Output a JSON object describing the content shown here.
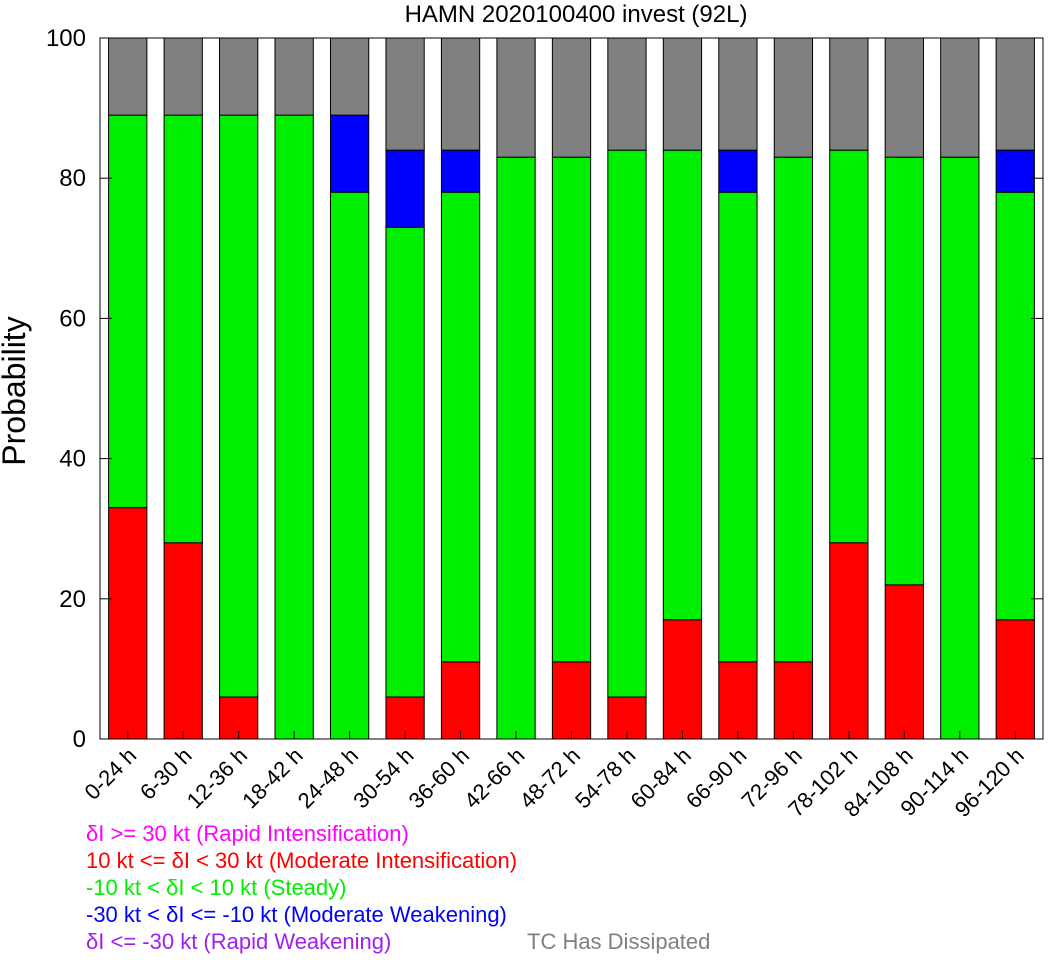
{
  "chart_data": {
    "type": "bar",
    "stacked": true,
    "title": "HAMN 2020100400 invest (92L)",
    "xlabel": "",
    "ylabel": "Probability",
    "ylim": [
      0,
      100
    ],
    "yticks": [
      0,
      20,
      40,
      60,
      80,
      100
    ],
    "grid": false,
    "categories": [
      "0-24 h",
      "6-30 h",
      "12-36 h",
      "18-42 h",
      "24-48 h",
      "30-54 h",
      "36-60 h",
      "42-66 h",
      "48-72 h",
      "54-78 h",
      "60-84 h",
      "66-90 h",
      "72-96 h",
      "78-102 h",
      "84-108 h",
      "90-114 h",
      "96-120 h"
    ],
    "series": [
      {
        "name": "δI >= 30 kt (Rapid Intensification)",
        "color": "#ff00ff",
        "values": [
          0,
          0,
          0,
          0,
          0,
          0,
          0,
          0,
          0,
          0,
          0,
          0,
          0,
          0,
          0,
          0,
          0
        ]
      },
      {
        "name": "10 kt <= δI < 30 kt (Moderate Intensification)",
        "color": "#ff0000",
        "values": [
          33,
          28,
          6,
          0,
          0,
          6,
          11,
          0,
          11,
          6,
          17,
          11,
          11,
          28,
          22,
          0,
          17
        ]
      },
      {
        "name": "-10 kt < δI < 10 kt (Steady)",
        "color": "#00ee00",
        "values": [
          56,
          61,
          83,
          89,
          78,
          67,
          67,
          83,
          72,
          78,
          67,
          67,
          72,
          56,
          61,
          83,
          61
        ]
      },
      {
        "name": "-30 kt < δI <= -10 kt (Moderate Weakening)",
        "color": "#0000ff",
        "values": [
          0,
          0,
          0,
          0,
          11,
          11,
          6,
          0,
          0,
          0,
          0,
          6,
          0,
          0,
          0,
          0,
          6
        ]
      },
      {
        "name": "δI <= -30 kt (Rapid Weakening)",
        "color": "#a020f0",
        "values": [
          0,
          0,
          0,
          0,
          0,
          0,
          0,
          0,
          0,
          0,
          0,
          0,
          0,
          0,
          0,
          0,
          0
        ]
      },
      {
        "name": "TC Has Dissipated",
        "color": "#808080",
        "values": [
          11,
          11,
          11,
          11,
          11,
          16,
          16,
          17,
          17,
          16,
          16,
          16,
          17,
          16,
          17,
          17,
          16
        ]
      }
    ],
    "legend_placement": "bottom-left"
  }
}
